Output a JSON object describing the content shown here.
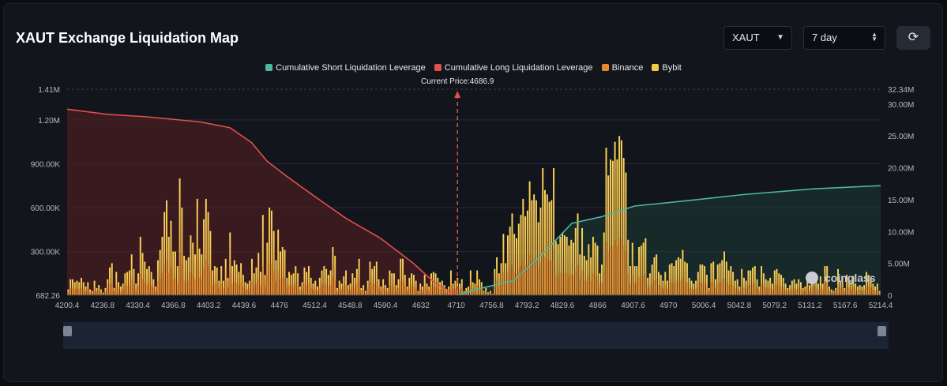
{
  "header": {
    "title": "XAUT Exchange Liquidation Map"
  },
  "controls": {
    "symbol": "XAUT",
    "period": "7 day"
  },
  "legend": {
    "items": [
      {
        "label": "Cumulative Short Liquidation Leverage",
        "color": "#4db6a0"
      },
      {
        "label": "Cumulative Long Liquidation Leverage",
        "color": "#e0504a"
      },
      {
        "label": "Binance",
        "color": "#e8892c"
      },
      {
        "label": "Bybit",
        "color": "#f2c84b"
      }
    ]
  },
  "watermark": "coinglass",
  "chart_data": {
    "type": "bar",
    "current_price_label": "Current Price:4686.9",
    "current_price": 4686.9,
    "x_ticks": [
      "4200.4",
      "4236.8",
      "4330.4",
      "4366.8",
      "4403.2",
      "4439.6",
      "4476",
      "4512.4",
      "4548.8",
      "4590.4",
      "4632",
      "4710",
      "4756.8",
      "4793.2",
      "4829.6",
      "4866",
      "4907.6",
      "4970",
      "5006.4",
      "5042.8",
      "5079.2",
      "5131.2",
      "5167.6",
      "5214.4"
    ],
    "y_left_ticks": [
      "682.26",
      "300.00K",
      "600.00K",
      "900.00K",
      "1.20M",
      "1.41M"
    ],
    "y_left_range": [
      682.26,
      1410000
    ],
    "y_right_ticks": [
      "0",
      "5.00M",
      "10.00M",
      "15.00M",
      "20.00M",
      "25.00M",
      "30.00M",
      "32.34M"
    ],
    "y_right_range": [
      0,
      32340000
    ],
    "bybit_values": [
      40000,
      110000,
      110000,
      90000,
      100000,
      90000,
      120000,
      90000,
      60000,
      90000,
      40000,
      30000,
      100000,
      50000,
      70000,
      40000,
      20000,
      50000,
      110000,
      190000,
      220000,
      50000,
      160000,
      90000,
      60000,
      80000,
      150000,
      160000,
      170000,
      280000,
      180000,
      80000,
      150000,
      400000,
      290000,
      230000,
      180000,
      200000,
      160000,
      110000,
      60000,
      240000,
      310000,
      400000,
      570000,
      650000,
      400000,
      510000,
      300000,
      300000,
      200000,
      800000,
      600000,
      270000,
      240000,
      260000,
      410000,
      360000,
      280000,
      660000,
      320000,
      280000,
      520000,
      660000,
      570000,
      440000,
      170000,
      200000,
      190000,
      100000,
      200000,
      100000,
      250000,
      120000,
      430000,
      200000,
      240000,
      210000,
      160000,
      220000,
      140000,
      90000,
      80000,
      100000,
      250000,
      150000,
      190000,
      290000,
      160000,
      550000,
      140000,
      360000,
      600000,
      580000,
      440000,
      240000,
      450000,
      300000,
      330000,
      310000,
      120000,
      160000,
      140000,
      150000,
      200000,
      150000,
      60000,
      90000,
      190000,
      160000,
      200000,
      120000,
      80000,
      100000,
      60000,
      120000,
      170000,
      200000,
      180000,
      140000,
      170000,
      330000,
      270000,
      50000,
      100000,
      80000,
      130000,
      170000,
      70000,
      80000,
      150000,
      120000,
      180000,
      250000,
      50000,
      70000,
      30000,
      100000,
      230000,
      180000,
      200000,
      230000,
      110000,
      60000,
      110000,
      70000,
      50000,
      170000,
      150000,
      150000,
      70000,
      110000,
      250000,
      250000,
      140000,
      60000,
      120000,
      150000,
      140000,
      100000,
      30000,
      80000,
      60000,
      140000,
      80000,
      60000,
      150000,
      160000,
      150000,
      120000,
      90000,
      100000,
      70000,
      40000,
      60000,
      170000,
      80000,
      100000,
      120000,
      80000,
      110000,
      30000,
      50000,
      60000,
      170000,
      90000,
      80000,
      170000,
      110000,
      90000,
      30000,
      50000,
      20000,
      30000,
      10000,
      180000,
      260000,
      150000,
      220000,
      420000,
      220000,
      410000,
      470000,
      560000,
      420000,
      390000,
      490000,
      550000,
      660000,
      540000,
      580000,
      780000,
      650000,
      690000,
      650000,
      500000,
      600000,
      870000,
      720000,
      690000,
      640000,
      650000,
      870000,
      370000,
      350000,
      400000,
      430000,
      410000,
      400000,
      340000,
      380000,
      360000,
      460000,
      560000,
      280000,
      460000,
      270000,
      240000,
      350000,
      260000,
      400000,
      360000,
      340000,
      150000,
      210000,
      430000,
      1010000,
      820000,
      930000,
      920000,
      1050000,
      930000,
      1090000,
      1060000,
      940000,
      840000,
      380000,
      200000,
      360000,
      200000,
      200000,
      330000,
      340000,
      360000,
      390000,
      120000,
      150000,
      210000,
      260000,
      280000,
      160000,
      140000,
      100000,
      160000,
      100000,
      210000,
      220000,
      200000,
      240000,
      260000,
      250000,
      310000,
      230000,
      220000,
      120000,
      100000,
      80000,
      100000,
      160000,
      210000,
      210000,
      200000,
      140000,
      50000,
      220000,
      230000,
      110000,
      210000,
      220000,
      240000,
      300000,
      230000,
      170000,
      200000,
      160000,
      100000,
      110000,
      60000,
      180000,
      120000,
      100000,
      170000,
      170000,
      190000,
      200000,
      110000,
      60000,
      200000,
      150000,
      110000,
      100000,
      120000,
      80000,
      170000,
      180000,
      150000,
      140000,
      120000,
      80000,
      50000,
      70000,
      100000,
      110000,
      80000,
      110000,
      90000,
      50000,
      60000,
      120000,
      70000,
      110000,
      150000,
      110000,
      80000,
      130000,
      80000,
      200000,
      200000,
      60000,
      40000,
      30000,
      50000,
      180000,
      100000,
      130000,
      50000,
      140000,
      110000,
      90000,
      130000,
      80000,
      60000,
      70000,
      60000,
      70000,
      160000,
      140000,
      120000,
      80000,
      60000,
      80000,
      30000
    ],
    "bybit_values_note": "",
    "long_cumulative": [
      [
        4200.4,
        29200000
      ],
      [
        4250,
        28400000
      ],
      [
        4300,
        28000000
      ],
      [
        4366.8,
        27200000
      ],
      [
        4403.2,
        26300000
      ],
      [
        4430,
        24000000
      ],
      [
        4450,
        21000000
      ],
      [
        4476,
        18500000
      ],
      [
        4512.4,
        15200000
      ],
      [
        4548.8,
        12000000
      ],
      [
        4590.4,
        9000000
      ],
      [
        4632,
        5000000
      ],
      [
        4660,
        1800000
      ],
      [
        4686.9,
        0
      ]
    ],
    "short_cumulative": [
      [
        4686.9,
        0
      ],
      [
        4710,
        900000
      ],
      [
        4756.8,
        2300000
      ],
      [
        4793.2,
        6500000
      ],
      [
        4829.6,
        11300000
      ],
      [
        4866,
        12300000
      ],
      [
        4907.6,
        14000000
      ],
      [
        4970,
        14800000
      ],
      [
        5042.8,
        15800000
      ],
      [
        5131.2,
        16700000
      ],
      [
        5214.4,
        17200000
      ]
    ]
  }
}
